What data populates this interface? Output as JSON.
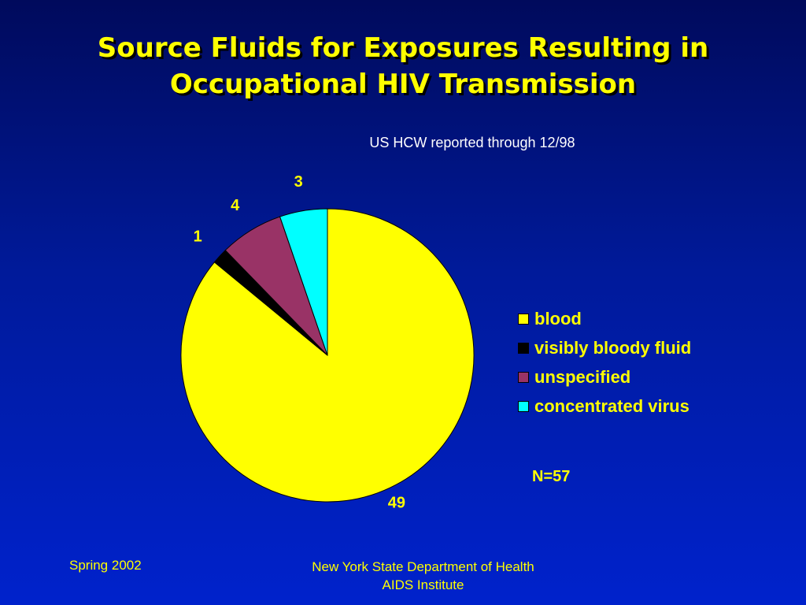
{
  "slide": {
    "title_line1": "Source Fluids for Exposures Resulting in",
    "title_line2": "Occupational HIV Transmission",
    "subtitle": "US HCW reported through 12/98",
    "note": "N=57",
    "footer_left": "Spring 2002",
    "footer_center_line1": "New York State Department of Health",
    "footer_center_line2": "AIDS Institute"
  },
  "chart_data": {
    "type": "pie",
    "title": "Source Fluids for Exposures Resulting in Occupational HIV Transmission",
    "subtitle": "US HCW reported through 12/98",
    "legend_position": "right",
    "total_label": "N=57",
    "slices": [
      {
        "label": "blood",
        "value": 49,
        "color": "#ffff00"
      },
      {
        "label": "visibly bloody fluid",
        "value": 1,
        "color": "#000000"
      },
      {
        "label": "unspecified",
        "value": 4,
        "color": "#993366"
      },
      {
        "label": "concentrated virus",
        "value": 3,
        "color": "#00ffff"
      }
    ]
  }
}
